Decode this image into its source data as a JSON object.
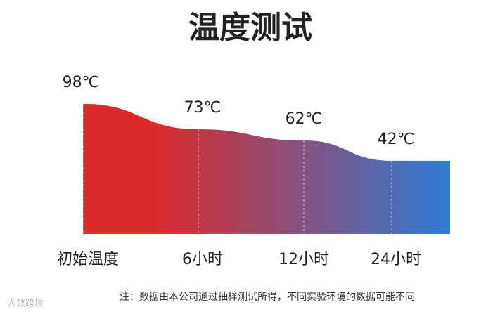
{
  "chart_data": {
    "type": "area",
    "title": "温度测试",
    "categories": [
      "初始温度",
      "6小时",
      "12小时",
      "24小时"
    ],
    "values": [
      98,
      73,
      62,
      42
    ],
    "value_labels": [
      "98℃",
      "73℃",
      "62℃",
      "42℃"
    ],
    "ylim": [
      -30,
      100
    ],
    "gradient": [
      "#d92b2c",
      "#2e7bd6"
    ],
    "note": "注：数据由本公司通过抽样测试所得，不同实验环境的数据可能不同"
  },
  "watermark": "大数跨境"
}
